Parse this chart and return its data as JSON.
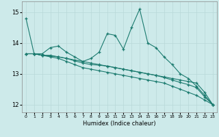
{
  "xlabel": "Humidex (Indice chaleur)",
  "background_color": "#cdeaea",
  "grid_color": "#b8d8d8",
  "line_color": "#1a7a6e",
  "xlim": [
    -0.5,
    23.5
  ],
  "ylim": [
    11.75,
    15.35
  ],
  "yticks": [
    12,
    13,
    14,
    15
  ],
  "xticks": [
    0,
    1,
    2,
    3,
    4,
    5,
    6,
    7,
    8,
    9,
    10,
    11,
    12,
    13,
    14,
    15,
    16,
    17,
    18,
    19,
    20,
    21,
    22,
    23
  ],
  "lines": [
    {
      "x": [
        0,
        1,
        2,
        3,
        4,
        5,
        6,
        7,
        8,
        9,
        10,
        11,
        12,
        13,
        14,
        15,
        16,
        17,
        18,
        19,
        20,
        21,
        22,
        23
      ],
      "y": [
        14.8,
        13.65,
        13.65,
        13.85,
        13.9,
        13.7,
        13.55,
        13.4,
        13.5,
        13.7,
        14.3,
        14.25,
        13.8,
        14.5,
        15.1,
        14.0,
        13.85,
        13.55,
        13.3,
        13.0,
        12.85,
        12.6,
        12.3,
        12.0
      ]
    },
    {
      "x": [
        0,
        1,
        2,
        3,
        4,
        5,
        6,
        7,
        8,
        9,
        10,
        11,
        12,
        13,
        14,
        15,
        16,
        17,
        18,
        19,
        20,
        21,
        22,
        23
      ],
      "y": [
        13.65,
        13.65,
        13.6,
        13.6,
        13.55,
        13.5,
        13.45,
        13.4,
        13.35,
        13.3,
        13.25,
        13.2,
        13.15,
        13.1,
        13.05,
        13.0,
        12.95,
        12.9,
        12.85,
        12.8,
        12.75,
        12.7,
        12.4,
        12.0
      ]
    },
    {
      "x": [
        0,
        1,
        2,
        3,
        4,
        5,
        6,
        7,
        8,
        9,
        10,
        11,
        12,
        13,
        14,
        15,
        16,
        17,
        18,
        19,
        20,
        21,
        22,
        23
      ],
      "y": [
        13.65,
        13.65,
        13.6,
        13.58,
        13.55,
        13.5,
        13.42,
        13.35,
        13.3,
        13.28,
        13.25,
        13.2,
        13.15,
        13.1,
        13.05,
        13.0,
        12.95,
        12.88,
        12.8,
        12.72,
        12.65,
        12.55,
        12.25,
        12.0
      ]
    },
    {
      "x": [
        0,
        1,
        2,
        3,
        4,
        5,
        6,
        7,
        8,
        9,
        10,
        11,
        12,
        13,
        14,
        15,
        16,
        17,
        18,
        19,
        20,
        21,
        22,
        23
      ],
      "y": [
        13.65,
        13.65,
        13.6,
        13.55,
        13.5,
        13.4,
        13.3,
        13.2,
        13.15,
        13.1,
        13.05,
        13.0,
        12.95,
        12.9,
        12.85,
        12.8,
        12.75,
        12.7,
        12.6,
        12.5,
        12.4,
        12.3,
        12.15,
        12.0
      ]
    }
  ]
}
